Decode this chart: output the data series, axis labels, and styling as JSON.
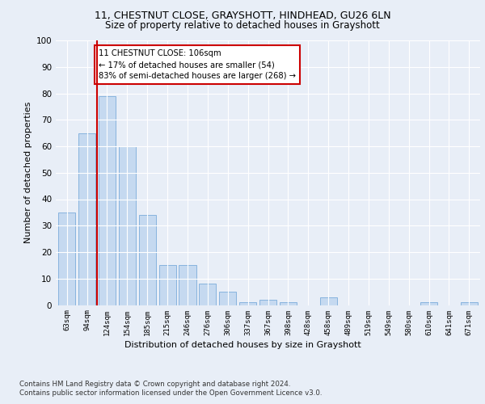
{
  "title1": "11, CHESTNUT CLOSE, GRAYSHOTT, HINDHEAD, GU26 6LN",
  "title2": "Size of property relative to detached houses in Grayshott",
  "xlabel": "Distribution of detached houses by size in Grayshott",
  "ylabel": "Number of detached properties",
  "categories": [
    "63sqm",
    "94sqm",
    "124sqm",
    "154sqm",
    "185sqm",
    "215sqm",
    "246sqm",
    "276sqm",
    "306sqm",
    "337sqm",
    "367sqm",
    "398sqm",
    "428sqm",
    "458sqm",
    "489sqm",
    "519sqm",
    "549sqm",
    "580sqm",
    "610sqm",
    "641sqm",
    "671sqm"
  ],
  "values": [
    35,
    65,
    79,
    60,
    34,
    15,
    15,
    8,
    5,
    1,
    2,
    1,
    0,
    3,
    0,
    0,
    0,
    0,
    1,
    0,
    1
  ],
  "bar_color": "#c5d9f0",
  "bar_edge_color": "#7aabdb",
  "vline_x": 1.5,
  "vline_color": "#cc0000",
  "annotation_line1": "11 CHESTNUT CLOSE: 106sqm",
  "annotation_line2": "← 17% of detached houses are smaller (54)",
  "annotation_line3": "83% of semi-detached houses are larger (268) →",
  "annotation_box_color": "#ffffff",
  "annotation_box_edge": "#cc0000",
  "ylim": [
    0,
    100
  ],
  "yticks": [
    0,
    10,
    20,
    30,
    40,
    50,
    60,
    70,
    80,
    90,
    100
  ],
  "footer1": "Contains HM Land Registry data © Crown copyright and database right 2024.",
  "footer2": "Contains public sector information licensed under the Open Government Licence v3.0.",
  "bg_color": "#e8eef7",
  "plot_bg_color": "#e8eef7"
}
